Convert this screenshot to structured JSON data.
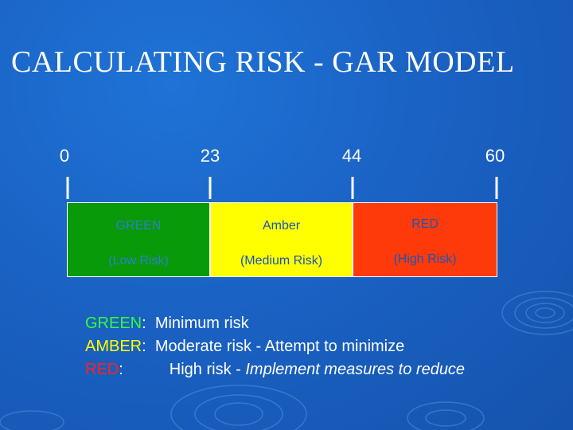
{
  "slide": {
    "title": "CALCULATING RISK - GAR MODEL"
  },
  "scale": {
    "ticks": [
      "0",
      "23",
      "44",
      "60"
    ],
    "segments": [
      {
        "name": "GREEN",
        "desc": "(Low Risk)",
        "fill": "#089a08",
        "text_color": "#2f7fd0"
      },
      {
        "name": "Amber",
        "desc": "(Medium Risk)",
        "fill": "#ffff00",
        "text_color": "#1a56b8"
      },
      {
        "name": "RED",
        "desc": "(High Risk)",
        "fill": "#ff3a0a",
        "text_color": "#1a56b8"
      }
    ]
  },
  "legend": {
    "green": {
      "key": "GREEN",
      "sep": ":",
      "desc": "Minimum risk",
      "color": "#33ff33"
    },
    "amber": {
      "key": "AMBER",
      "sep": ":",
      "desc": "Moderate risk - Attempt to minimize",
      "color": "#ffff00"
    },
    "red": {
      "key": "RED",
      "sep": ":",
      "desc": "High risk - ",
      "desc_italic": "Implement measures to reduce",
      "color": "#ff2020"
    }
  }
}
